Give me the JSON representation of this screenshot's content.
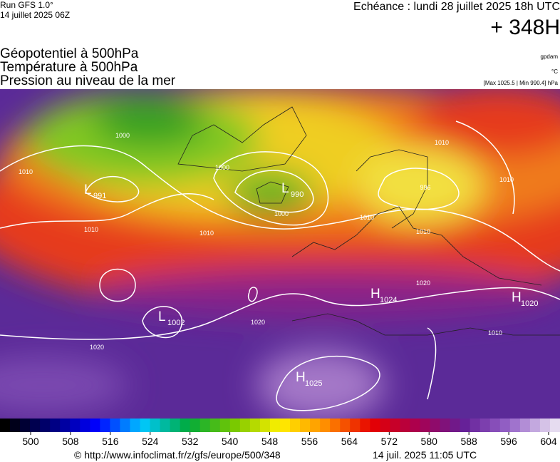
{
  "header": {
    "run": "Run GFS 1.0°",
    "run_date": "14 juillet 2025 06Z",
    "valid": "Echéance : lundi 28 juillet 2025 18h UTC",
    "lead": "+ 348H"
  },
  "titles": [
    "Géopotentiel à 500hPa",
    "Température à 500hPa",
    "Pression au niveau de la mer"
  ],
  "units": {
    "geopotential": "gpdam",
    "temperature": "°C",
    "pressure_range": "[Max 1025.5 | Min 990.4] hPa"
  },
  "pressure_centers": [
    {
      "symbol": "L",
      "pressure": 991
    },
    {
      "symbol": "L",
      "pressure": 990
    },
    {
      "symbol": "L",
      "pressure": 1002
    },
    {
      "symbol": "H",
      "pressure": 1024
    },
    {
      "symbol": "H",
      "pressure": 1020
    },
    {
      "symbol": "H",
      "pressure": 1025
    }
  ],
  "contour_labels": [
    1010,
    1000,
    1000,
    1000,
    1010,
    1010,
    1010,
    1010,
    1020,
    1020,
    1020,
    1010,
    996,
    1010,
    1010
  ],
  "colorbar": {
    "ticks": [
      500,
      508,
      516,
      524,
      532,
      540,
      548,
      556,
      564,
      572,
      580,
      588,
      596,
      604
    ]
  },
  "footer": {
    "url": "© http://www.infoclimat.fr/z/gfs/europe/500/348",
    "generated": "14 juil. 2025 11:05 UTC"
  }
}
